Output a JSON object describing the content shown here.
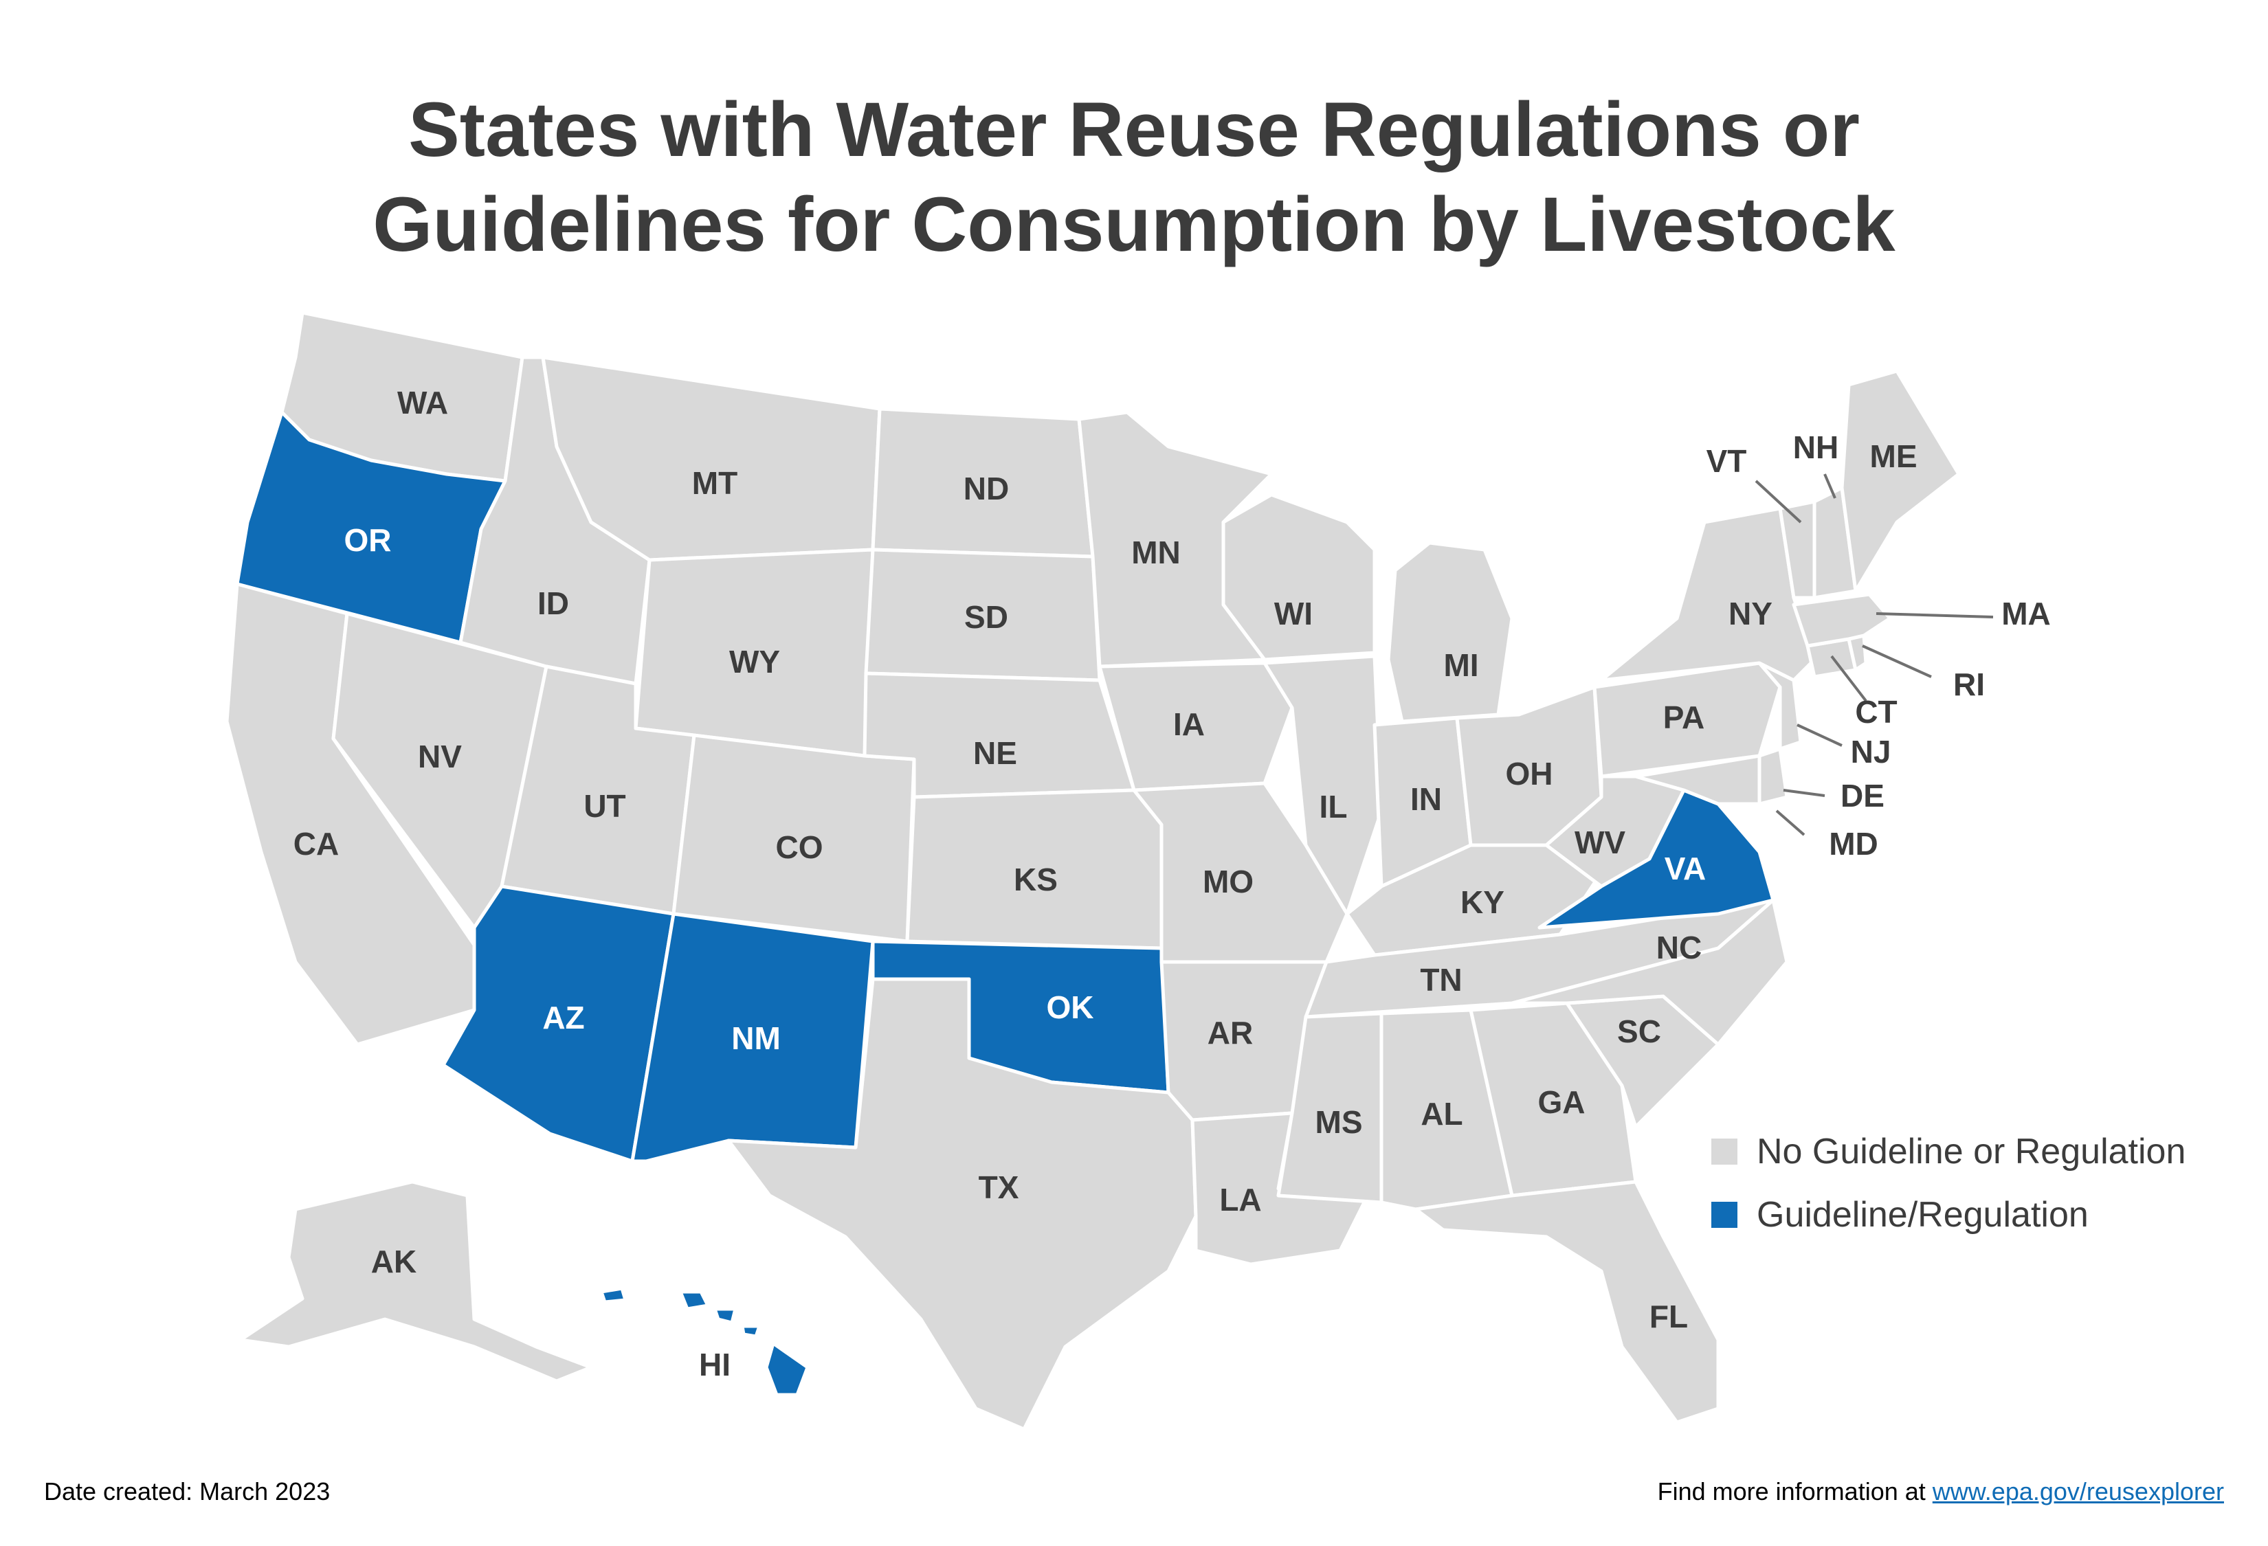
{
  "title": {
    "line1": "States with Water Reuse Regulations or",
    "line2": "Guidelines for Consumption by Livestock"
  },
  "colors": {
    "no_guideline": "#d9d9d9",
    "guideline": "#0f6cb6",
    "borders": "#ffffff",
    "text": "#3c3c3c"
  },
  "legend": {
    "items": [
      {
        "label": "No Guideline or Regulation",
        "color": "#d9d9d9"
      },
      {
        "label": "Guideline/Regulation",
        "color": "#0f6cb6"
      }
    ]
  },
  "states": {
    "WA": "none",
    "OR": "guideline",
    "CA": "none",
    "NV": "none",
    "ID": "none",
    "MT": "none",
    "WY": "none",
    "UT": "none",
    "AZ": "guideline",
    "CO": "none",
    "NM": "guideline",
    "ND": "none",
    "SD": "none",
    "NE": "none",
    "KS": "none",
    "OK": "guideline",
    "TX": "none",
    "MN": "none",
    "IA": "none",
    "MO": "none",
    "AR": "none",
    "LA": "none",
    "WI": "none",
    "IL": "none",
    "MI": "none",
    "IN": "none",
    "OH": "none",
    "KY": "none",
    "TN": "none",
    "MS": "none",
    "AL": "none",
    "GA": "none",
    "FL": "none",
    "SC": "none",
    "NC": "none",
    "VA": "guideline",
    "WV": "none",
    "PA": "none",
    "NY": "none",
    "VT": "none",
    "NH": "none",
    "ME": "none",
    "MA": "none",
    "RI": "none",
    "CT": "none",
    "NJ": "none",
    "DE": "none",
    "MD": "none",
    "AK": "none",
    "HI": "guideline"
  },
  "footer": {
    "date": "Date created: March 2023",
    "info_prefix": "Find more information at",
    "link": "www.epa.gov/reusexplorer"
  }
}
